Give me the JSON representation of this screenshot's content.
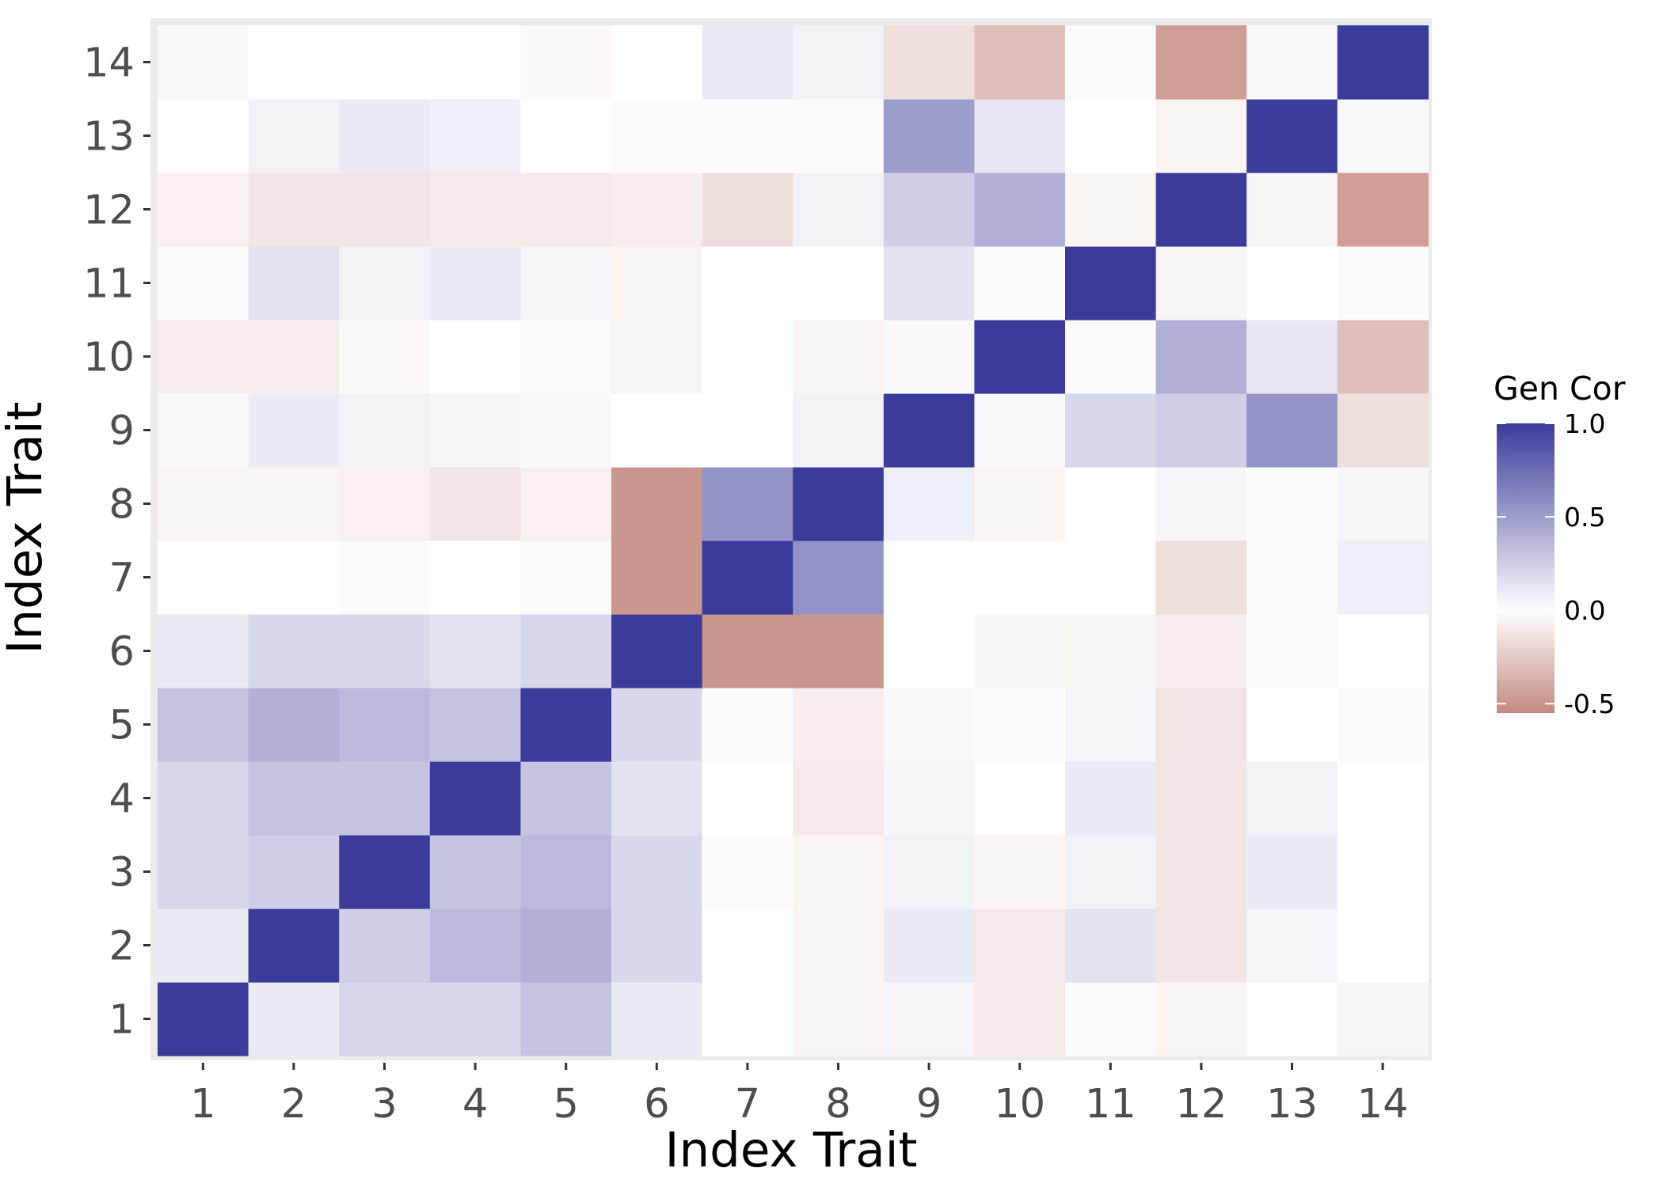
{
  "chart_data": {
    "type": "heatmap",
    "xlabel": "Index Trait",
    "ylabel": "Index Trait",
    "x_categories": [
      "1",
      "2",
      "3",
      "4",
      "5",
      "6",
      "7",
      "8",
      "9",
      "10",
      "11",
      "12",
      "13",
      "14"
    ],
    "y_categories": [
      "1",
      "2",
      "3",
      "4",
      "5",
      "6",
      "7",
      "8",
      "9",
      "10",
      "11",
      "12",
      "13",
      "14"
    ],
    "legend": {
      "title": "Gen Cor",
      "ticks": [
        1.0,
        0.5,
        0.0,
        -0.5
      ],
      "tick_labels": [
        "1.0",
        "0.5",
        "0.0",
        "-0.5"
      ],
      "range": [
        -0.55,
        1.0
      ],
      "position": "right"
    },
    "colors": {
      "high": "#3b3b9a",
      "mid": "#ffffff",
      "low": "#c48a80",
      "panel_background": "#ebebeb",
      "grid": "#ffffff"
    },
    "matrix": [
      [
        1.0,
        0.1,
        0.2,
        0.2,
        0.3,
        0.1,
        0.0,
        -0.05,
        0.05,
        -0.1,
        0.02,
        -0.05,
        0.0,
        0.05
      ],
      [
        0.1,
        1.0,
        0.25,
        0.35,
        0.4,
        0.2,
        0.0,
        -0.05,
        0.1,
        -0.1,
        0.15,
        -0.12,
        0.05,
        0.0
      ],
      [
        0.2,
        0.25,
        1.0,
        0.3,
        0.35,
        0.2,
        -0.02,
        -0.05,
        0.07,
        -0.05,
        0.07,
        -0.12,
        0.1,
        0.0
      ],
      [
        0.2,
        0.3,
        0.3,
        1.0,
        0.3,
        0.15,
        0.0,
        -0.1,
        0.05,
        0.0,
        0.1,
        -0.12,
        0.07,
        0.0
      ],
      [
        0.3,
        0.4,
        0.35,
        0.3,
        1.0,
        0.2,
        0.02,
        -0.08,
        0.03,
        -0.02,
        0.05,
        -0.12,
        0.0,
        -0.02
      ],
      [
        0.1,
        0.2,
        0.2,
        0.15,
        0.2,
        1.0,
        -0.5,
        -0.5,
        0.0,
        -0.04,
        -0.05,
        -0.08,
        0.02,
        0.0
      ],
      [
        0.0,
        0.0,
        -0.02,
        0.0,
        0.02,
        -0.5,
        1.0,
        0.55,
        0.0,
        0.0,
        0.0,
        -0.15,
        -0.02,
        0.08
      ],
      [
        -0.05,
        -0.05,
        -0.07,
        -0.12,
        -0.07,
        -0.5,
        0.55,
        1.0,
        0.08,
        -0.05,
        0.0,
        0.05,
        -0.02,
        0.05
      ],
      [
        0.03,
        0.1,
        0.07,
        0.05,
        0.03,
        0.0,
        0.0,
        0.07,
        1.0,
        0.03,
        0.2,
        0.25,
        0.55,
        -0.15
      ],
      [
        -0.08,
        -0.08,
        -0.03,
        0.0,
        -0.02,
        -0.05,
        0.0,
        -0.05,
        0.03,
        1.0,
        -0.02,
        0.4,
        0.12,
        -0.3
      ],
      [
        0.02,
        0.15,
        0.07,
        0.1,
        0.05,
        -0.05,
        0.0,
        0.0,
        0.15,
        -0.02,
        1.0,
        -0.05,
        0.0,
        0.02
      ],
      [
        -0.07,
        -0.12,
        -0.12,
        -0.1,
        -0.1,
        -0.08,
        -0.15,
        0.07,
        0.25,
        0.4,
        -0.05,
        1.0,
        -0.05,
        -0.45
      ],
      [
        0.0,
        0.07,
        0.1,
        0.08,
        0.0,
        0.02,
        -0.02,
        -0.02,
        0.5,
        0.12,
        0.0,
        -0.05,
        1.0,
        0.03
      ],
      [
        0.03,
        0.0,
        0.0,
        0.0,
        -0.03,
        0.0,
        0.1,
        0.07,
        -0.15,
        -0.3,
        0.02,
        -0.45,
        0.03,
        1.0
      ]
    ]
  }
}
